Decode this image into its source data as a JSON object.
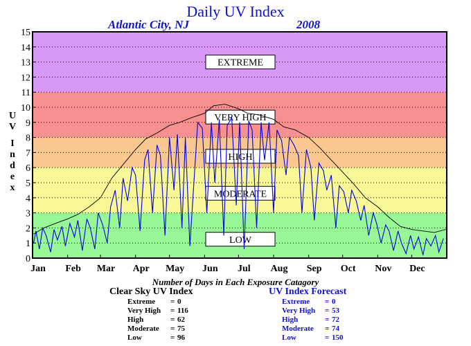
{
  "title": "Daily UV Index",
  "location": "Atlantic City, NJ",
  "year": "2008",
  "y_axis_label": "UV Index",
  "days_title": "Number of Days in Each Exposure Catagory",
  "clear_sky": {
    "heading": "Clear Sky UV Index",
    "rows": [
      {
        "label": "Extreme",
        "value": "0"
      },
      {
        "label": "Very High",
        "value": "116"
      },
      {
        "label": "High",
        "value": "62"
      },
      {
        "label": "Moderate",
        "value": "75"
      },
      {
        "label": "Low",
        "value": "96"
      }
    ]
  },
  "forecast": {
    "heading": "UV Index Forecast",
    "rows": [
      {
        "label": "Extreme",
        "value": "0"
      },
      {
        "label": "Very High",
        "value": "53"
      },
      {
        "label": "High",
        "value": "72"
      },
      {
        "label": "Moderate",
        "value": "74"
      },
      {
        "label": "Low",
        "value": "150"
      }
    ]
  },
  "colors": {
    "extreme_band": "#d898f8",
    "very_high_band": "#f89090",
    "high_band": "#f8c890",
    "moderate_band": "#f8f898",
    "low_band": "#98f898",
    "clear_sky_line": "#000000",
    "forecast_line": "#0000e0",
    "title_text": "#1010d0"
  },
  "chart_data": {
    "type": "line",
    "title": "Daily UV Index",
    "xlabel": "",
    "ylabel": "UV Index",
    "xlim": [
      0,
      366
    ],
    "ylim": [
      0,
      15
    ],
    "y_ticks": [
      0,
      1,
      2,
      3,
      4,
      5,
      6,
      7,
      8,
      9,
      10,
      11,
      12,
      13,
      14,
      15
    ],
    "x_tick_labels": [
      "Jan",
      "Feb",
      "Mar",
      "Apr",
      "May",
      "Jun",
      "Jul",
      "Aug",
      "Sep",
      "Oct",
      "Nov",
      "Dec"
    ],
    "x_tick_days": [
      0,
      31,
      60,
      91,
      121,
      152,
      182,
      213,
      244,
      274,
      305,
      335
    ],
    "grid": true,
    "bands": [
      {
        "label": "LOW",
        "from": 0,
        "to": 3,
        "color": "#98f898"
      },
      {
        "label": "MODERATE",
        "from": 3,
        "to": 6,
        "color": "#f8f898"
      },
      {
        "label": "HIGH",
        "from": 6,
        "to": 8,
        "color": "#f8c890"
      },
      {
        "label": "VERY HIGH",
        "from": 8,
        "to": 11,
        "color": "#f89090"
      },
      {
        "label": "EXTREME",
        "from": 11,
        "to": 15,
        "color": "#d898f8"
      }
    ],
    "series": [
      {
        "name": "Clear Sky UV Index",
        "color": "#000000",
        "x": [
          1,
          10,
          20,
          31,
          40,
          50,
          60,
          70,
          80,
          91,
          100,
          110,
          121,
          130,
          140,
          152,
          160,
          170,
          182,
          190,
          200,
          213,
          222,
          232,
          244,
          254,
          264,
          274,
          284,
          294,
          305,
          315,
          325,
          335,
          345,
          355,
          365
        ],
        "y": [
          1.6,
          2.0,
          2.3,
          2.6,
          2.9,
          3.4,
          4.0,
          5.3,
          6.2,
          7.2,
          7.9,
          8.3,
          8.8,
          9.0,
          9.3,
          9.6,
          10.1,
          10.2,
          9.9,
          9.6,
          9.5,
          9.2,
          8.7,
          8.5,
          8.0,
          7.3,
          6.5,
          5.7,
          4.9,
          4.0,
          3.4,
          2.7,
          2.1,
          1.9,
          1.8,
          1.7,
          1.9
        ]
      },
      {
        "name": "UV Index Forecast",
        "color": "#0000e0",
        "x": [
          1,
          3,
          6,
          9,
          12,
          16,
          19,
          22,
          26,
          29,
          33,
          37,
          40,
          44,
          48,
          51,
          55,
          58,
          62,
          66,
          69,
          73,
          77,
          80,
          84,
          88,
          91,
          95,
          99,
          102,
          106,
          110,
          113,
          117,
          121,
          125,
          128,
          132,
          135,
          139,
          146,
          150,
          154,
          158,
          161,
          165,
          169,
          172,
          176,
          180,
          183,
          187,
          191,
          194,
          198,
          202,
          205,
          209,
          213,
          216,
          220,
          224,
          227,
          231,
          235,
          238,
          242,
          246,
          249,
          253,
          257,
          260,
          264,
          268,
          271,
          275,
          279,
          282,
          286,
          290,
          293,
          297,
          301,
          304,
          308,
          312,
          315,
          319,
          323,
          326,
          330,
          334,
          337,
          341,
          345,
          348,
          352,
          356,
          359,
          363
        ],
        "y": [
          1.0,
          1.8,
          0.6,
          2.0,
          1.5,
          0.4,
          1.9,
          1.2,
          2.1,
          0.8,
          2.3,
          1.4,
          2.5,
          0.5,
          2.6,
          2.0,
          0.6,
          3.0,
          2.2,
          1.0,
          3.4,
          4.5,
          2.0,
          5.3,
          3.8,
          6.0,
          5.5,
          1.8,
          6.5,
          7.2,
          3.0,
          7.5,
          6.8,
          1.5,
          8.0,
          4.5,
          8.2,
          2.0,
          8.0,
          0.8,
          9.0,
          8.6,
          3.0,
          9.0,
          5.0,
          9.2,
          1.5,
          8.8,
          9.3,
          3.5,
          9.0,
          0.6,
          9.1,
          8.5,
          2.0,
          9.0,
          6.5,
          9.0,
          3.0,
          8.5,
          7.8,
          5.5,
          8.0,
          7.5,
          6.8,
          3.0,
          7.2,
          6.0,
          2.5,
          6.3,
          5.8,
          4.5,
          5.5,
          2.0,
          4.8,
          4.4,
          3.0,
          4.5,
          3.8,
          2.5,
          3.5,
          1.5,
          3.0,
          2.3,
          1.0,
          2.2,
          1.8,
          0.5,
          1.8,
          1.0,
          0.3,
          1.5,
          0.6,
          1.4,
          0.2,
          1.3,
          0.8,
          1.5,
          0.4,
          1.3
        ]
      }
    ]
  }
}
